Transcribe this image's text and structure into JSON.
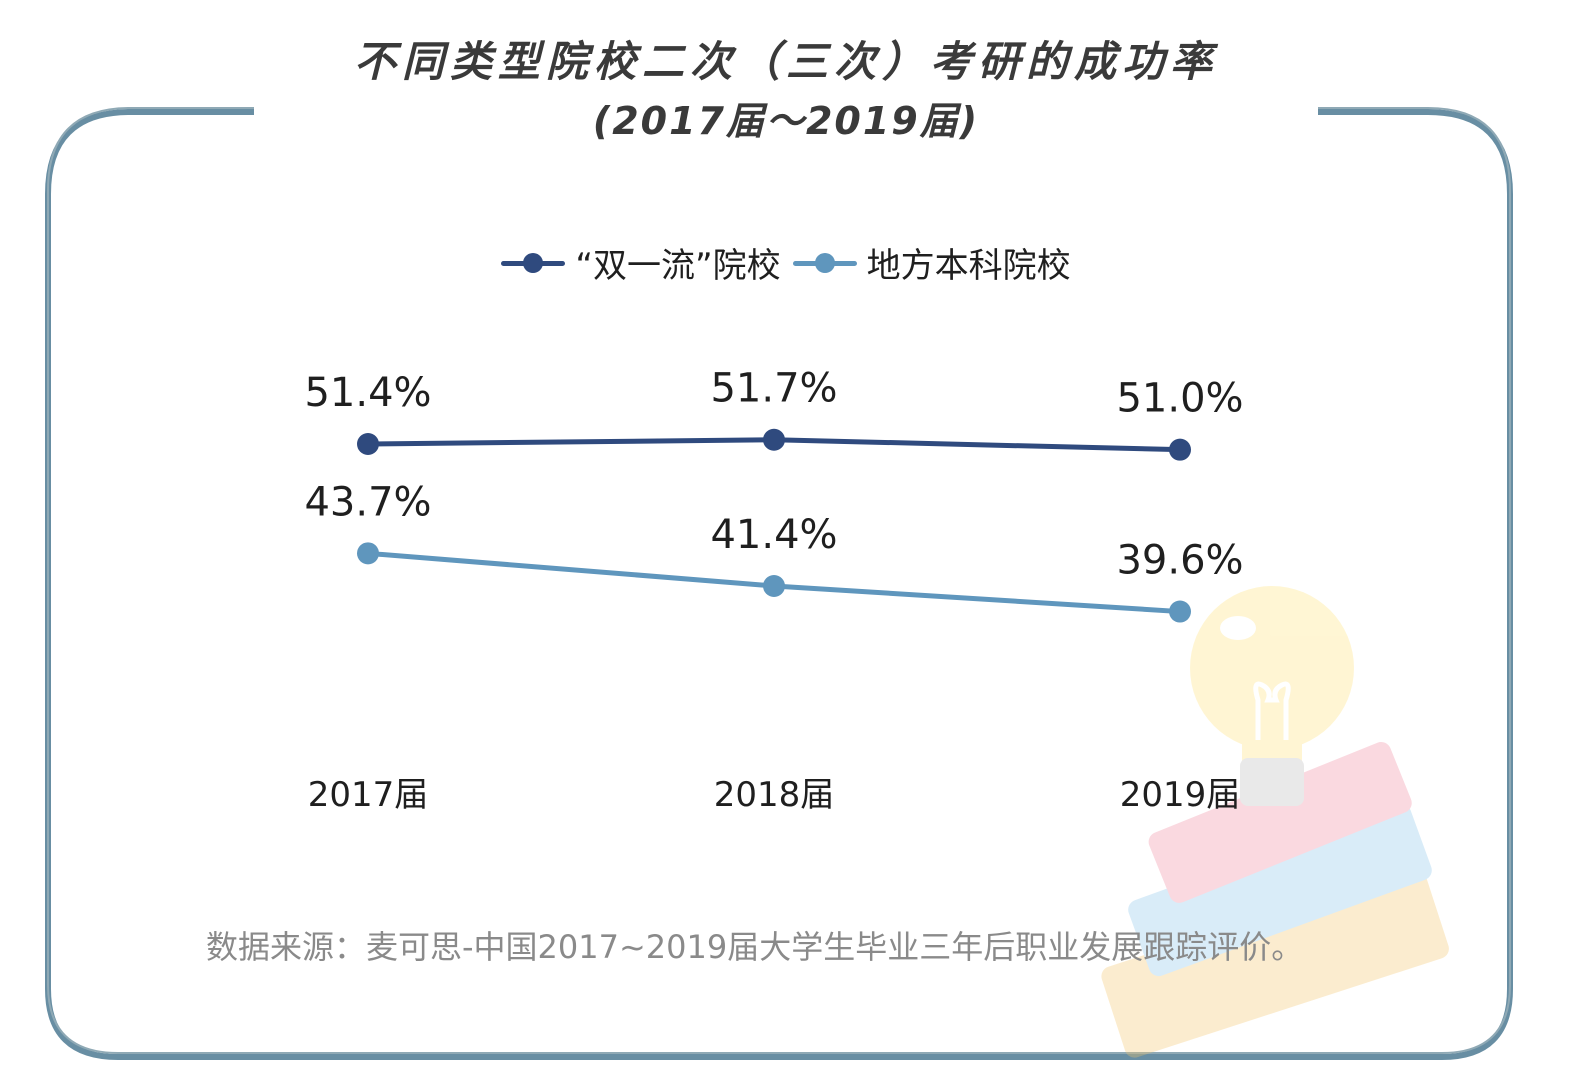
{
  "title": "不同类型院校二次（三次）考研的成功率",
  "subtitle": "(2017届～2019届)",
  "source": "数据来源：麦可思-中国2017~2019届大学生毕业三年后职业发展跟踪评价。",
  "colors": {
    "series_dark": "#2f4a7e",
    "series_light": "#5f96bd",
    "frame": "#8fa9b5",
    "frame_shadow": "#4d7a93"
  },
  "decoration": "lightbulb-books-icon",
  "chart_data": {
    "type": "line",
    "categories": [
      "2017届",
      "2018届",
      "2019届"
    ],
    "series": [
      {
        "name": "“双一流”院校",
        "values": [
          51.4,
          51.7,
          51.0
        ],
        "labels": [
          "51.4%",
          "51.7%",
          "51.0%"
        ]
      },
      {
        "name": "地方本科院校",
        "values": [
          43.7,
          41.4,
          39.6
        ],
        "labels": [
          "43.7%",
          "41.4%",
          "39.6%"
        ]
      }
    ],
    "legend": "top-center",
    "grid": false
  }
}
